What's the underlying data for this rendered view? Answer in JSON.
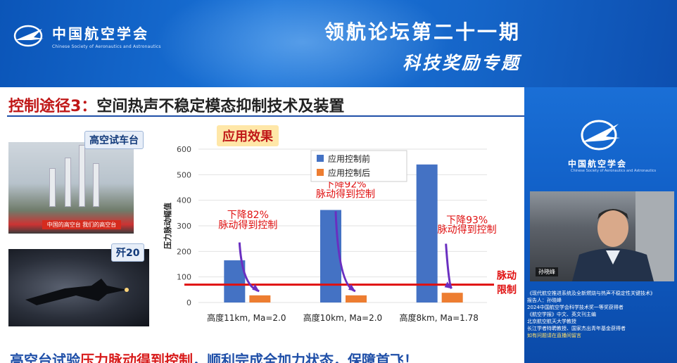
{
  "header": {
    "org_name_cn": "中国航空学会",
    "org_name_en": "Chinese Society of Aeronautics and Astronautics",
    "event_title": "领航论坛第二十一期",
    "event_subtitle": "科技奖励专题"
  },
  "slide": {
    "title_prefix": "控制途径3：",
    "title_main": "空间热声不稳定模态抑制技术及装置",
    "photo1_label": "高空试车台",
    "photo1_banner": "中国的高空台 我们的高空台",
    "photo2_label": "歼20",
    "apply_label": "应用效果",
    "bottom_text_1": "高空台试验",
    "bottom_text_2": "压力脉动得到控制",
    "bottom_text_3": "，顺利完成全加力状态，保障首飞！"
  },
  "chart_data": {
    "type": "bar",
    "categories": [
      "高度11km, Ma=2.0",
      "高度10km, Ma=2.0",
      "高度8km, Ma=1.78"
    ],
    "series": [
      {
        "name": "应用控制前",
        "values": [
          165,
          362,
          540
        ],
        "color": "#4472c4"
      },
      {
        "name": "应用控制后",
        "values": [
          28,
          28,
          38
        ],
        "color": "#ed7d31"
      }
    ],
    "ylabel": "压力脉动幅值",
    "ylim": [
      0,
      600
    ],
    "yticks": [
      0,
      100,
      200,
      300,
      400,
      500,
      600
    ],
    "limit_line": {
      "value": 70,
      "label": "脉动限制",
      "color": "#e01010"
    },
    "annotations": [
      {
        "text1": "下降82%",
        "text2": "脉动得到控制"
      },
      {
        "text1": "下降92%",
        "text2": "脉动得到控制"
      },
      {
        "text1": "下降93%",
        "text2": "脉动得到控制"
      }
    ],
    "grid": true,
    "legend": "top"
  },
  "right_panel": {
    "logo_cn": "中国航空学会",
    "logo_en": "Chinese Society of Aeronautics and Astronautics",
    "speaker_name": "孙晓峰",
    "info_lines": [
      "《现代航空推进系统及全新燃烧与热声不稳定性关键技术》",
      "报告人：孙晓峰",
      "2024中国航空学会科学技术奖一等奖获得者",
      "《航空学报》中文、英文刊主编",
      "北京航空航天大学教授",
      "长江学者特聘教授、国家杰出青年基金获得者",
      "如有问题请在直播间留言"
    ]
  },
  "colors": {
    "brand_blue": "#1565c0",
    "accent_red": "#c01818"
  }
}
